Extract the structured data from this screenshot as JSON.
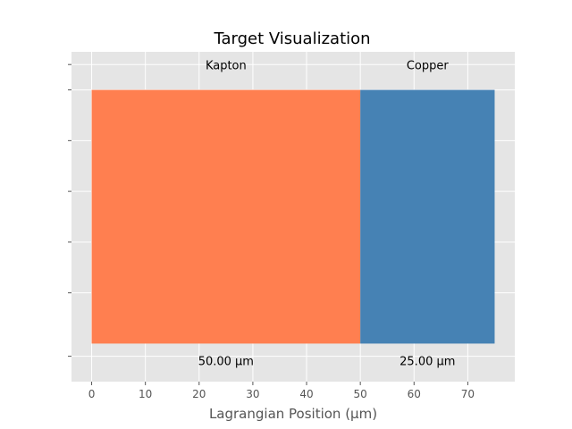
{
  "chart_data": {
    "type": "bar",
    "title": "Target Visualization",
    "xlabel": "Lagrangian Position (µm)",
    "ylabel": "",
    "xlim": [
      -3.75,
      78.75
    ],
    "ylim": [
      -0.15,
      1.15
    ],
    "xticks": [
      0,
      10,
      20,
      30,
      40,
      50,
      60,
      70
    ],
    "yticks": [
      -0.05,
      0.2,
      0.4,
      0.6,
      0.8,
      1.0,
      1.1
    ],
    "grid": true,
    "layers": [
      {
        "name": "Kapton",
        "start": 0,
        "end": 50,
        "thickness_label": "50.00 µm",
        "color": "#ff7f50"
      },
      {
        "name": "Copper",
        "start": 50,
        "end": 75,
        "thickness_label": "25.00 µm",
        "color": "#4682b4"
      }
    ],
    "bar_y": [
      0,
      1
    ],
    "colors": {
      "plot_bg": "#e5e5e5",
      "grid": "#ffffff",
      "tick": "#555555"
    }
  }
}
